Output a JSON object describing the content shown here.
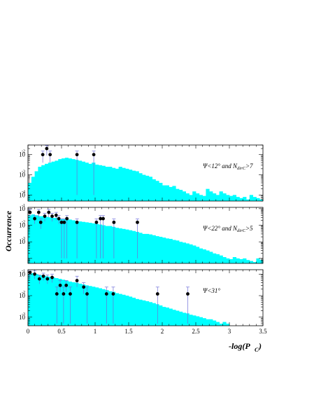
{
  "chart_data": {
    "type": "bar",
    "ylabel": "Occurrence",
    "xlabel": {
      "main": "-log(P",
      "sub": "C",
      "close": ")"
    },
    "xlim": [
      0,
      3.5
    ],
    "x_ticks": [
      "0",
      "0.5",
      "1",
      "1.5",
      "2",
      "2.5",
      "3",
      "3.5"
    ],
    "log_y": true,
    "grid": false,
    "bin_width": 0.05,
    "panels": [
      {
        "label": "Ψ<12° and N",
        "label_sub": "dirC",
        "label_tail": ">7",
        "ylim": [
          5e-05,
          0.03
        ],
        "y_ticks": [
          {
            "base": "10",
            "exp": "-2",
            "value": 0.01
          },
          {
            "base": "10",
            "exp": "-3",
            "value": 0.001
          },
          {
            "base": "10",
            "exp": "-4",
            "value": 0.0001
          }
        ],
        "hist": [
          0.0004,
          0.0008,
          0.0015,
          0.0025,
          0.003,
          0.0035,
          0.004,
          0.0045,
          0.005,
          0.006,
          0.0065,
          0.007,
          0.0065,
          0.006,
          0.0055,
          0.005,
          0.0045,
          0.004,
          0.0035,
          0.004,
          0.0032,
          0.003,
          0.0028,
          0.0025,
          0.0025,
          0.0022,
          0.002,
          0.0025,
          0.0022,
          0.002,
          0.0018,
          0.0016,
          0.0015,
          0.0012,
          0.001,
          0.0009,
          0.0008,
          0.0006,
          0.0005,
          0.0004,
          0.0003,
          0.0003,
          0.00025,
          0.00028,
          0.0002,
          0.00018,
          0.00015,
          0.00012,
          0.0001,
          0.00015,
          0.00012,
          0.0001,
          9e-05,
          0.0002,
          0.00015,
          0.00012,
          0.0001,
          0.00015,
          0.00012,
          0.0001,
          9e-05,
          0.0001,
          8e-05,
          7e-05,
          8e-05,
          6e-05,
          0.0001,
          8e-05,
          7e-05,
          6e-05
        ],
        "points": [
          {
            "x": 0.22,
            "y": 0.01,
            "err_lo": 0.004,
            "err_hi": 0.015
          },
          {
            "x": 0.28,
            "y": 0.02,
            "err_lo": 0.009,
            "err_hi": 0.028
          },
          {
            "x": 0.33,
            "y": 0.01,
            "err_lo": 0.004,
            "err_hi": 0.015
          },
          {
            "x": 0.73,
            "y": 0.01,
            "err_lo": 0.0001,
            "err_hi": 0.015
          },
          {
            "x": 0.98,
            "y": 0.01,
            "err_lo": 0.0001,
            "err_hi": 0.015
          }
        ]
      },
      {
        "label": "Ψ<22° and N",
        "label_sub": "dirC",
        "label_tail": ">5",
        "ylim": [
          5e-05,
          0.12
        ],
        "y_ticks": [
          {
            "base": "10",
            "exp": "-1",
            "value": 0.1
          },
          {
            "base": "10",
            "exp": "-2",
            "value": 0.01
          },
          {
            "base": "10",
            "exp": "-3",
            "value": 0.001
          }
        ],
        "hist": [
          0.04,
          0.045,
          0.04,
          0.035,
          0.035,
          0.032,
          0.03,
          0.028,
          0.028,
          0.025,
          0.024,
          0.022,
          0.022,
          0.02,
          0.018,
          0.017,
          0.016,
          0.015,
          0.014,
          0.013,
          0.012,
          0.011,
          0.01,
          0.009,
          0.009,
          0.008,
          0.007,
          0.0065,
          0.006,
          0.0055,
          0.005,
          0.0045,
          0.004,
          0.0035,
          0.003,
          0.003,
          0.0028,
          0.0025,
          0.0022,
          0.002,
          0.0018,
          0.0016,
          0.0015,
          0.0013,
          0.0012,
          0.001,
          0.0009,
          0.0008,
          0.0007,
          0.0006,
          0.0005,
          0.0004,
          0.00035,
          0.0003,
          0.00025,
          0.0002,
          0.00018,
          0.00015,
          0.00012,
          0.0001,
          9e-05,
          0.00012,
          0.0001,
          9e-05,
          0.0001,
          8e-05,
          7e-05,
          6e-05,
          0.0001,
          8e-05
        ],
        "points": [
          {
            "x": 0.03,
            "y": 0.06,
            "err_lo": 0.03,
            "err_hi": 0.09
          },
          {
            "x": 0.1,
            "y": 0.025,
            "err_lo": 0.012,
            "err_hi": 0.038
          },
          {
            "x": 0.16,
            "y": 0.06,
            "err_lo": 0.03,
            "err_hi": 0.09
          },
          {
            "x": 0.19,
            "y": 0.015,
            "err_lo": 0.006,
            "err_hi": 0.024
          },
          {
            "x": 0.25,
            "y": 0.035,
            "err_lo": 0.017,
            "err_hi": 0.053
          },
          {
            "x": 0.31,
            "y": 0.06,
            "err_lo": 0.03,
            "err_hi": 0.09
          },
          {
            "x": 0.36,
            "y": 0.035,
            "err_lo": 0.017,
            "err_hi": 0.053
          },
          {
            "x": 0.42,
            "y": 0.04,
            "err_lo": 0.02,
            "err_hi": 0.06
          },
          {
            "x": 0.46,
            "y": 0.025,
            "err_lo": 0.012,
            "err_hi": 0.038
          },
          {
            "x": 0.5,
            "y": 0.015,
            "err_lo": 0.0001,
            "err_hi": 0.024
          },
          {
            "x": 0.54,
            "y": 0.015,
            "err_lo": 0.0001,
            "err_hi": 0.024
          },
          {
            "x": 0.58,
            "y": 0.025,
            "err_lo": 0.0001,
            "err_hi": 0.038
          },
          {
            "x": 0.73,
            "y": 0.015,
            "err_lo": 0.0001,
            "err_hi": 0.024
          },
          {
            "x": 1.02,
            "y": 0.015,
            "err_lo": 0.0001,
            "err_hi": 0.024
          },
          {
            "x": 1.08,
            "y": 0.025,
            "err_lo": 0.0001,
            "err_hi": 0.038
          },
          {
            "x": 1.12,
            "y": 0.025,
            "err_lo": 0.0001,
            "err_hi": 0.038
          },
          {
            "x": 1.28,
            "y": 0.015,
            "err_lo": 0.0001,
            "err_hi": 0.024
          },
          {
            "x": 1.63,
            "y": 0.015,
            "err_lo": 0.0001,
            "err_hi": 0.024
          }
        ]
      },
      {
        "label": "Ψ<31°",
        "label_sub": "",
        "label_tail": "",
        "ylim": [
          0.0004,
          0.16
        ],
        "y_ticks": [
          {
            "base": "10",
            "exp": "-1",
            "value": 0.1
          },
          {
            "base": "10",
            "exp": "-2",
            "value": 0.01
          },
          {
            "base": "10",
            "exp": "-3",
            "value": 0.001
          }
        ],
        "hist": [
          0.1,
          0.11,
          0.1,
          0.09,
          0.085,
          0.08,
          0.075,
          0.07,
          0.065,
          0.06,
          0.055,
          0.05,
          0.045,
          0.042,
          0.04,
          0.036,
          0.033,
          0.03,
          0.028,
          0.026,
          0.024,
          0.022,
          0.02,
          0.018,
          0.016,
          0.015,
          0.013,
          0.012,
          0.011,
          0.01,
          0.009,
          0.008,
          0.007,
          0.0065,
          0.006,
          0.0055,
          0.005,
          0.0045,
          0.004,
          0.0035,
          0.003,
          0.0028,
          0.0025,
          0.0022,
          0.002,
          0.0018,
          0.0016,
          0.0015,
          0.0013,
          0.0012,
          0.0011,
          0.001,
          0.0009,
          0.0008,
          0.0008,
          0.0007,
          0.0006,
          0.0005,
          0.0006,
          0.0005
        ],
        "points": [
          {
            "x": 0.03,
            "y": 0.12,
            "err_lo": 0.07,
            "err_hi": 0.14
          },
          {
            "x": 0.1,
            "y": 0.1,
            "err_lo": 0.06,
            "err_hi": 0.14
          },
          {
            "x": 0.17,
            "y": 0.06,
            "err_lo": 0.035,
            "err_hi": 0.09
          },
          {
            "x": 0.23,
            "y": 0.08,
            "err_lo": 0.05,
            "err_hi": 0.11
          },
          {
            "x": 0.29,
            "y": 0.06,
            "err_lo": 0.035,
            "err_hi": 0.09
          },
          {
            "x": 0.36,
            "y": 0.07,
            "err_lo": 0.04,
            "err_hi": 0.1
          },
          {
            "x": 0.43,
            "y": 0.012,
            "err_lo": 0.0005,
            "err_hi": 0.025
          },
          {
            "x": 0.48,
            "y": 0.03,
            "err_lo": 0.015,
            "err_hi": 0.05
          },
          {
            "x": 0.53,
            "y": 0.012,
            "err_lo": 0.0005,
            "err_hi": 0.025
          },
          {
            "x": 0.57,
            "y": 0.03,
            "err_lo": 0.015,
            "err_hi": 0.05
          },
          {
            "x": 0.63,
            "y": 0.012,
            "err_lo": 0.0005,
            "err_hi": 0.025
          },
          {
            "x": 0.73,
            "y": 0.05,
            "err_lo": 0.025,
            "err_hi": 0.08
          },
          {
            "x": 0.83,
            "y": 0.025,
            "err_lo": 0.012,
            "err_hi": 0.04
          },
          {
            "x": 0.88,
            "y": 0.012,
            "err_lo": 0.0005,
            "err_hi": 0.025
          },
          {
            "x": 1.17,
            "y": 0.012,
            "err_lo": 0.0005,
            "err_hi": 0.025
          },
          {
            "x": 1.27,
            "y": 0.012,
            "err_lo": 0.0005,
            "err_hi": 0.025
          },
          {
            "x": 1.93,
            "y": 0.012,
            "err_lo": 0.0005,
            "err_hi": 0.025
          },
          {
            "x": 2.38,
            "y": 0.012,
            "err_lo": 0.0005,
            "err_hi": 0.025
          }
        ]
      }
    ]
  },
  "colors": {
    "hist_fill": "#00ffff",
    "points": "#000000",
    "error_bars": "#6f6fd8",
    "frame": "#000000"
  }
}
